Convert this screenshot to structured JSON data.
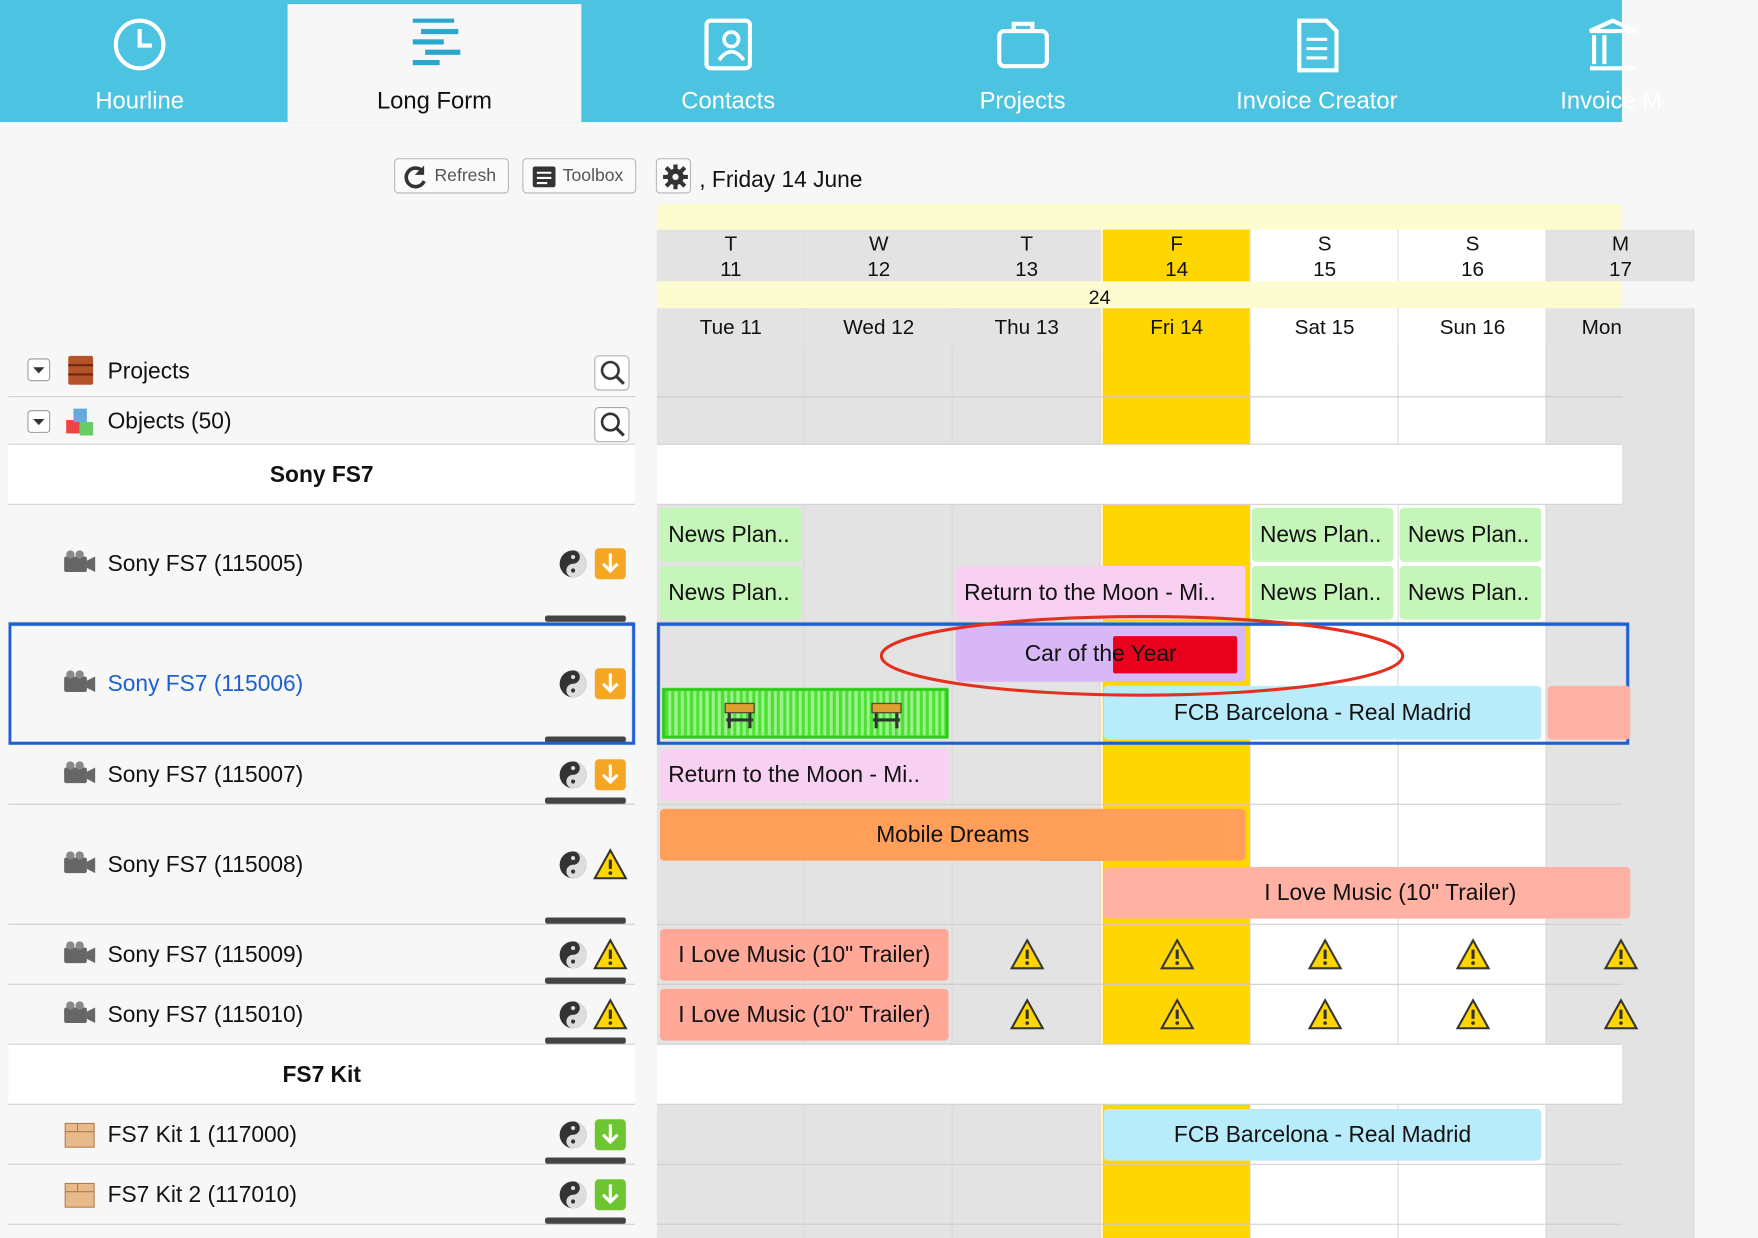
{
  "nav": {
    "tabs": [
      {
        "label": "Hourline"
      },
      {
        "label": "Long Form"
      },
      {
        "label": "Contacts"
      },
      {
        "label": "Projects"
      },
      {
        "label": "Invoice Creator"
      },
      {
        "label": "Invoice M"
      }
    ]
  },
  "toolbar": {
    "refresh": "Refresh",
    "toolbox": "Toolbox",
    "date": ", Friday 14 June"
  },
  "calendar": {
    "week": "24",
    "days": [
      {
        "letter": "T",
        "number": "11",
        "label": "Tue 11"
      },
      {
        "letter": "W",
        "number": "12",
        "label": "Wed 12"
      },
      {
        "letter": "T",
        "number": "13",
        "label": "Thu 13"
      },
      {
        "letter": "F",
        "number": "14",
        "label": "Fri 14"
      },
      {
        "letter": "S",
        "number": "15",
        "label": "Sat 15"
      },
      {
        "letter": "S",
        "number": "16",
        "label": "Sun 16"
      },
      {
        "letter": "M",
        "number": "17",
        "label": "Mon"
      }
    ],
    "bookings": [
      {
        "label": "News Plan.."
      },
      {
        "label": "News Plan.."
      },
      {
        "label": "News Plan.."
      },
      {
        "label": "News Plan.."
      },
      {
        "label": "Return to the Moon - Mi.."
      },
      {
        "label": "News Plan.."
      },
      {
        "label": "News Plan.."
      },
      {
        "label": "Car of the Year"
      },
      {
        "label": "FCB Barcelona - Real Madrid"
      },
      {
        "label": "Return to the Moon - Mi.."
      },
      {
        "label": "Mobile Dreams"
      },
      {
        "label": "I Love Music (10\" Trailer)"
      },
      {
        "label": "I Love Music (10\" Trailer)"
      },
      {
        "label": "I Love Music (10\" Trailer)"
      },
      {
        "label": "FCB Barcelona - Real Madrid"
      }
    ]
  },
  "sidebar": {
    "sections": [
      {
        "label": "Projects"
      },
      {
        "label": "Objects (50)"
      }
    ],
    "rows": [
      {
        "label": "Sony FS7",
        "group": true
      },
      {
        "label": "Sony FS7 (115005)"
      },
      {
        "label": "Sony FS7 (115006)"
      },
      {
        "label": "Sony FS7 (115007)"
      },
      {
        "label": "Sony FS7 (115008)"
      },
      {
        "label": "Sony FS7 (115009)"
      },
      {
        "label": "Sony FS7 (115010)"
      },
      {
        "label": "FS7 Kit",
        "group": true
      },
      {
        "label": "FS7 Kit 1 (117000)"
      },
      {
        "label": "FS7 Kit 2 (117010)"
      }
    ]
  }
}
